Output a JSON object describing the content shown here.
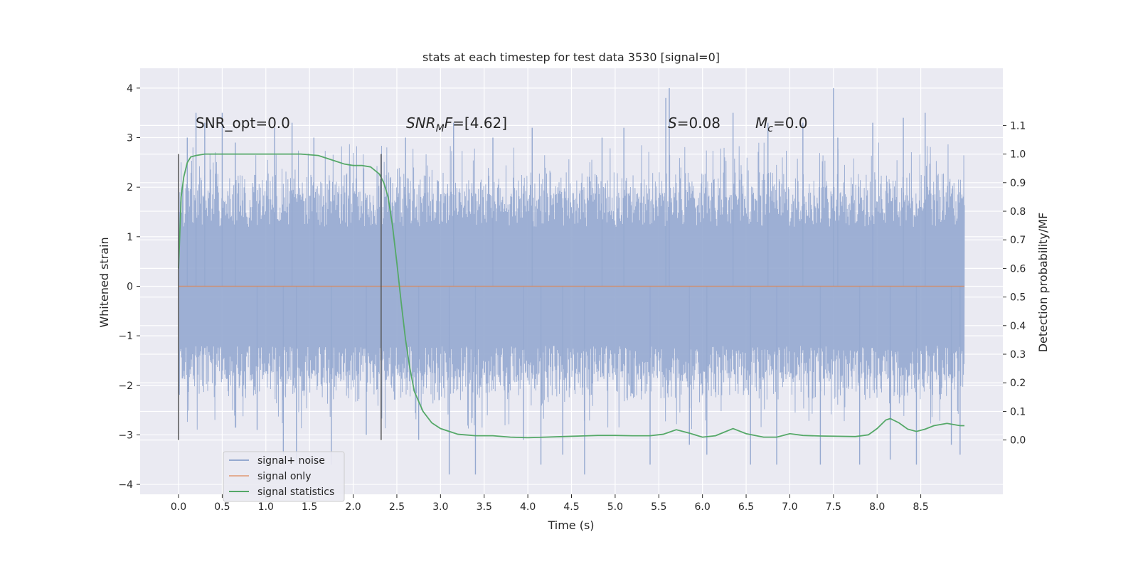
{
  "chart_data": {
    "type": "line",
    "title": "stats at each timestep for test data 3530 [signal=0]",
    "xlabel": "Time (s)",
    "ylabel": "Whitened strain",
    "y2label": "Detection probability/MF",
    "xlim": [
      -0.44,
      9.44
    ],
    "ylim": [
      -4.2,
      4.4
    ],
    "y2lim": [
      -0.19,
      1.3
    ],
    "xticks": [
      "0.0",
      "0.5",
      "1.0",
      "1.5",
      "2.0",
      "2.5",
      "3.0",
      "3.5",
      "4.0",
      "4.5",
      "5.0",
      "5.5",
      "6.0",
      "6.5",
      "7.0",
      "7.5",
      "8.0",
      "8.5"
    ],
    "yticks": [
      "4",
      "3",
      "2",
      "1",
      "0",
      "−1",
      "−2",
      "−3",
      "−4"
    ],
    "y2ticks": [
      "1.1",
      "1.0",
      "0.9",
      "0.8",
      "0.7",
      "0.6",
      "0.5",
      "0.4",
      "0.3",
      "0.2",
      "0.1",
      "0.0"
    ],
    "grid": true,
    "legend_position": "lower-left",
    "markers_x": [
      0.0,
      2.32
    ],
    "annotations": {
      "snr_opt": "SNR_opt=0.0",
      "snr_mf_name": "SNR",
      "snr_mf_sub": "M",
      "snr_mf_rest": "F",
      "snr_mf_value": "=[4.62]",
      "s_name": "S",
      "s_value": "=0.08",
      "mc_name": "M",
      "mc_sub": "c",
      "mc_value": "=0.0"
    },
    "series": [
      {
        "name": "signal+ noise",
        "color": "#95a9d0",
        "axis": "left",
        "style": "dense-noise",
        "x_range": [
          0.0,
          9.0
        ],
        "core_band": [
          -1.8,
          1.8
        ],
        "spikes": [
          [
            0.1,
            3.0
          ],
          [
            0.2,
            3.5
          ],
          [
            0.3,
            3.3
          ],
          [
            0.5,
            3.5
          ],
          [
            0.65,
            2.9
          ],
          [
            0.9,
            -2.9
          ],
          [
            1.1,
            3.2
          ],
          [
            1.2,
            -3.4
          ],
          [
            1.3,
            3.3
          ],
          [
            1.35,
            -3.6
          ],
          [
            1.55,
            3.0
          ],
          [
            1.75,
            -3.6
          ],
          [
            2.15,
            -3.0
          ],
          [
            2.6,
            3.0
          ],
          [
            2.75,
            -3.1
          ],
          [
            3.1,
            -3.8
          ],
          [
            3.15,
            3.3
          ],
          [
            3.4,
            -3.8
          ],
          [
            3.6,
            3.0
          ],
          [
            3.95,
            -3.1
          ],
          [
            4.05,
            3.2
          ],
          [
            4.15,
            -3.6
          ],
          [
            4.4,
            -3.4
          ],
          [
            4.65,
            -3.8
          ],
          [
            4.85,
            3.0
          ],
          [
            5.1,
            3.2
          ],
          [
            5.4,
            -3.6
          ],
          [
            5.58,
            3.8
          ],
          [
            5.62,
            4.0
          ],
          [
            5.85,
            -3.2
          ],
          [
            6.05,
            -3.4
          ],
          [
            6.35,
            3.5
          ],
          [
            6.55,
            -3.6
          ],
          [
            6.75,
            3.3
          ],
          [
            6.85,
            -3.6
          ],
          [
            7.15,
            3.3
          ],
          [
            7.35,
            -3.6
          ],
          [
            7.5,
            4.0
          ],
          [
            7.55,
            3.0
          ],
          [
            7.8,
            -3.6
          ],
          [
            7.95,
            3.3
          ],
          [
            8.15,
            -3.5
          ],
          [
            8.3,
            3.4
          ],
          [
            8.45,
            -3.6
          ],
          [
            8.55,
            3.5
          ],
          [
            8.85,
            -3.2
          ],
          [
            8.95,
            -3.4
          ]
        ]
      },
      {
        "name": "signal only",
        "color": "#dd8452",
        "axis": "left",
        "x": [
          0.0,
          9.0
        ],
        "y": [
          0.0,
          0.0
        ]
      },
      {
        "name": "signal statistics",
        "color": "#55a868",
        "axis": "right",
        "x": [
          0.0,
          0.03,
          0.06,
          0.1,
          0.14,
          0.2,
          0.3,
          0.5,
          1.0,
          1.4,
          1.6,
          1.7,
          1.8,
          1.9,
          2.0,
          2.1,
          2.2,
          2.3,
          2.35,
          2.4,
          2.45,
          2.5,
          2.55,
          2.6,
          2.65,
          2.7,
          2.8,
          2.9,
          3.0,
          3.2,
          3.4,
          3.6,
          3.8,
          4.0,
          4.2,
          4.4,
          4.6,
          4.8,
          5.0,
          5.2,
          5.4,
          5.55,
          5.7,
          5.85,
          6.0,
          6.15,
          6.35,
          6.5,
          6.7,
          6.85,
          7.0,
          7.15,
          7.35,
          7.55,
          7.75,
          7.9,
          8.0,
          8.1,
          8.15,
          8.25,
          8.35,
          8.45,
          8.55,
          8.65,
          8.8,
          8.95,
          9.0
        ],
        "y": [
          0.6,
          0.85,
          0.92,
          0.97,
          0.99,
          0.995,
          1.0,
          1.0,
          1.0,
          1.0,
          0.995,
          0.985,
          0.975,
          0.965,
          0.96,
          0.96,
          0.955,
          0.93,
          0.9,
          0.85,
          0.75,
          0.62,
          0.48,
          0.35,
          0.25,
          0.17,
          0.1,
          0.06,
          0.04,
          0.02,
          0.015,
          0.015,
          0.01,
          0.008,
          0.01,
          0.012,
          0.014,
          0.016,
          0.016,
          0.015,
          0.015,
          0.02,
          0.036,
          0.024,
          0.01,
          0.015,
          0.04,
          0.022,
          0.01,
          0.01,
          0.022,
          0.016,
          0.014,
          0.013,
          0.012,
          0.018,
          0.04,
          0.07,
          0.075,
          0.06,
          0.038,
          0.03,
          0.038,
          0.05,
          0.058,
          0.05,
          0.05
        ]
      }
    ]
  }
}
